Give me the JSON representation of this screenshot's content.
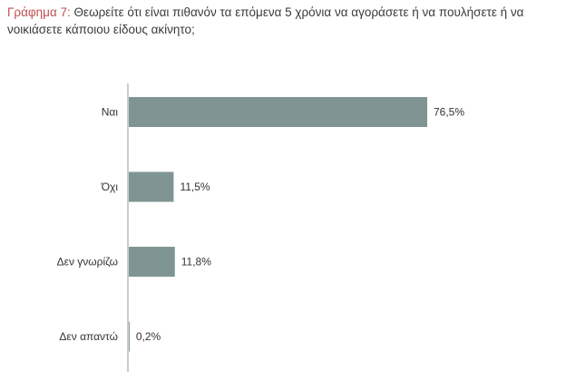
{
  "title": {
    "lead": "Γράφημα 7:",
    "text": "Θεωρείτε ότι είναι πιθανόν τα επόμενα 5 χρόνια να αγοράσετε ή να πουλήσετε ή να νοικιάσετε κάποιου είδους ακίνητο;"
  },
  "chart_data": {
    "type": "bar",
    "orientation": "horizontal",
    "categories": [
      "Ναι",
      "Όχι",
      "Δεν γνωρίζω",
      "Δεν απαντώ"
    ],
    "values": [
      76.5,
      11.5,
      11.8,
      0.2
    ],
    "value_labels": [
      "76,5%",
      "11,5%",
      "11,8%",
      "0,2%"
    ],
    "xlim": [
      0,
      76.5
    ],
    "grid": false,
    "bar_color": "#7f9593"
  }
}
